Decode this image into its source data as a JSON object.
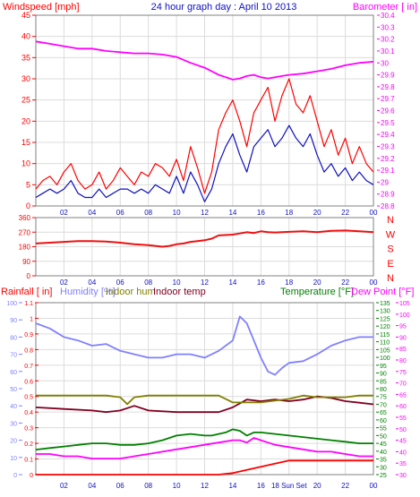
{
  "header": {
    "left_title": "Windspeed [mph]",
    "center_title": "24 hour graph day : April 10 2013",
    "right_title": "Barometer [ in]"
  },
  "colors": {
    "wind_gust": "#ff0000",
    "wind_avg": "#1010c0",
    "barometer": "#ff00ff",
    "direction": "#ee1111",
    "rainfall": "#ff0000",
    "humidity": "#8080ff",
    "indoor_hum": "#808000",
    "indoor_temp": "#800020",
    "temperature": "#008000",
    "dew_point": "#ff00ff",
    "annotation": "#ffff00",
    "grid": "#dcdcdc",
    "frame": "#808080"
  },
  "x_ticks": [
    "02",
    "04",
    "06",
    "08",
    "10",
    "12",
    "14",
    "16",
    "18",
    "20",
    "22",
    "00"
  ],
  "x_ticks_bottom": [
    "02",
    "04",
    "06",
    "08",
    "10",
    "12",
    "14",
    "16",
    "18 Sun Set",
    "20",
    "22",
    "00"
  ],
  "chart_data": [
    {
      "type": "line",
      "name": "windspeed-barometer",
      "x_range": [
        0,
        24
      ],
      "y_left": {
        "label": "Windspeed [mph]",
        "range": [
          0,
          45
        ],
        "ticks": [
          "0",
          "5",
          "10",
          "15",
          "20",
          "25",
          "30",
          "35",
          "40",
          "45"
        ]
      },
      "y_right": {
        "label": "Barometer [ in]",
        "range": [
          28.8,
          30.4
        ],
        "ticks": [
          "28.8",
          "28.9",
          "29",
          "29.1",
          "29.2",
          "29.3",
          "29.4",
          "29.5",
          "29.6",
          "29.7",
          "29.8",
          "29.9",
          "30",
          "30.1",
          "30.2",
          "30.3",
          "30.4"
        ]
      },
      "series": [
        {
          "key": "gust",
          "axis": "left",
          "x": [
            0,
            0.5,
            1,
            1.5,
            2,
            2.5,
            3,
            3.5,
            4,
            4.5,
            5,
            5.5,
            6,
            6.5,
            7,
            7.5,
            8,
            8.5,
            9,
            9.5,
            10,
            10.5,
            11,
            11.5,
            12,
            12.5,
            13,
            13.5,
            14,
            14.5,
            15,
            15.5,
            16,
            16.5,
            17,
            17.5,
            18,
            18.5,
            19,
            19.5,
            20,
            20.5,
            21,
            21.5,
            22,
            22.5,
            23,
            23.5,
            24
          ],
          "values": [
            4,
            6,
            7,
            5,
            8,
            10,
            6,
            4,
            5,
            8,
            4,
            6,
            9,
            7,
            5,
            8,
            7,
            10,
            9,
            7,
            11,
            6,
            14,
            9,
            3,
            8,
            18,
            22,
            25,
            20,
            14,
            22,
            25,
            28,
            20,
            26,
            30,
            24,
            22,
            26,
            20,
            14,
            18,
            12,
            16,
            10,
            14,
            10,
            8
          ]
        },
        {
          "key": "average",
          "axis": "left",
          "x": [
            0,
            0.5,
            1,
            1.5,
            2,
            2.5,
            3,
            3.5,
            4,
            4.5,
            5,
            5.5,
            6,
            6.5,
            7,
            7.5,
            8,
            8.5,
            9,
            9.5,
            10,
            10.5,
            11,
            11.5,
            12,
            12.5,
            13,
            13.5,
            14,
            14.5,
            15,
            15.5,
            16,
            16.5,
            17,
            17.5,
            18,
            18.5,
            19,
            19.5,
            20,
            20.5,
            21,
            21.5,
            22,
            22.5,
            23,
            23.5,
            24
          ],
          "values": [
            2,
            3,
            4,
            3,
            4,
            6,
            3,
            2,
            2,
            4,
            2,
            3,
            4,
            4,
            3,
            4,
            3,
            5,
            4,
            3,
            7,
            3,
            8,
            5,
            1,
            4,
            10,
            14,
            17,
            12,
            8,
            14,
            16,
            18,
            14,
            16,
            19,
            16,
            14,
            17,
            12,
            8,
            10,
            7,
            9,
            6,
            8,
            6,
            5
          ]
        },
        {
          "key": "barometer",
          "axis": "right",
          "x": [
            0,
            1,
            2,
            3,
            4,
            5,
            6,
            7,
            8,
            9,
            10,
            11,
            12,
            12.5,
            13,
            13.5,
            14,
            14.5,
            15,
            15.5,
            16,
            16.5,
            17,
            17.5,
            18,
            19,
            20,
            21,
            22,
            23,
            24
          ],
          "values": [
            30.18,
            30.16,
            30.14,
            30.12,
            30.12,
            30.1,
            30.09,
            30.08,
            30.08,
            30.07,
            30.05,
            30.0,
            29.96,
            29.93,
            29.9,
            29.88,
            29.86,
            29.87,
            29.89,
            29.9,
            29.88,
            29.87,
            29.88,
            29.89,
            29.9,
            29.91,
            29.93,
            29.95,
            29.98,
            30.0,
            30.01
          ]
        }
      ]
    },
    {
      "type": "line",
      "name": "wind-direction",
      "x_range": [
        0,
        24
      ],
      "y_left": {
        "range": [
          0,
          360
        ],
        "ticks": [
          "0",
          "90",
          "180",
          "270",
          "360"
        ]
      },
      "y_right_labels": [
        "N",
        "W",
        "S",
        "E",
        "N"
      ],
      "series": [
        {
          "key": "direction",
          "x": [
            0,
            1,
            2,
            3,
            4,
            5,
            6,
            7,
            8,
            9,
            9.5,
            10,
            10.5,
            11,
            11.5,
            12,
            12.5,
            13,
            14,
            14.5,
            15,
            15.5,
            16,
            16.5,
            17,
            18,
            19,
            20,
            21,
            22,
            23,
            24
          ],
          "values": [
            200,
            205,
            210,
            215,
            215,
            212,
            205,
            195,
            190,
            180,
            185,
            195,
            200,
            210,
            215,
            220,
            230,
            250,
            255,
            262,
            270,
            265,
            275,
            270,
            268,
            272,
            275,
            270,
            278,
            280,
            275,
            270
          ]
        }
      ]
    },
    {
      "type": "line",
      "name": "rain-humidity-temperature",
      "x_range": [
        0,
        24
      ],
      "y_rain": {
        "label": "Rainfall [ in]",
        "range": [
          0,
          1.1
        ],
        "ticks": [
          "0",
          "0.1",
          "0.2",
          "0.3",
          "0.4",
          "0.5",
          "0.6",
          "0.7",
          "0.8",
          "0.9",
          "1",
          "1.1"
        ]
      },
      "y_humidity": {
        "label": "Humidity [%]",
        "range": [
          0,
          100
        ],
        "ticks": [
          "0",
          "10",
          "20",
          "30",
          "40",
          "50",
          "60",
          "70",
          "80",
          "90",
          "100"
        ]
      },
      "y_temp": {
        "label": "Temperature [°F]",
        "range": [
          25,
          135
        ],
        "ticks": [
          "25",
          "30",
          "35",
          "40",
          "45",
          "50",
          "55",
          "60",
          "65",
          "70",
          "75",
          "80",
          "85",
          "90",
          "95",
          "100",
          "105",
          "110",
          "115",
          "120",
          "125",
          "130",
          "135"
        ]
      },
      "y_dew": {
        "label": "Dew Point [°F]",
        "range": [
          30,
          105
        ],
        "ticks": [
          "30",
          "35",
          "40",
          "45",
          "50",
          "55",
          "60",
          "65",
          "70",
          "75",
          "80",
          "85",
          "90",
          "95",
          "100",
          "105"
        ]
      },
      "legend_labels": [
        "Rainfall [ in]",
        "Humidity [%]",
        "Indoor hum",
        "Indoor temp",
        "Temperature [°F]",
        "Dew Point [°F]"
      ],
      "series": [
        {
          "key": "rainfall",
          "axis": "rain",
          "x": [
            0,
            13,
            14,
            14.5,
            15,
            16,
            17,
            17.5,
            18,
            24
          ],
          "values": [
            0,
            0,
            0.01,
            0.02,
            0.03,
            0.05,
            0.07,
            0.08,
            0.09,
            0.09
          ]
        },
        {
          "key": "humidity",
          "axis": "humidity",
          "x": [
            0,
            1,
            2,
            3,
            4,
            5,
            6,
            7,
            8,
            9,
            10,
            11,
            12,
            13,
            13.5,
            14,
            14.5,
            15,
            15.5,
            16,
            16.5,
            17,
            17.5,
            18,
            19,
            20,
            21,
            22,
            23,
            24
          ],
          "values": [
            88,
            85,
            80,
            78,
            75,
            76,
            72,
            70,
            68,
            68,
            70,
            70,
            68,
            72,
            75,
            78,
            92,
            88,
            78,
            68,
            60,
            58,
            62,
            65,
            66,
            70,
            75,
            78,
            80,
            80
          ]
        },
        {
          "key": "indoor_temp",
          "axis": "temp",
          "x": [
            0,
            2,
            4,
            5,
            6,
            7,
            8,
            10,
            12,
            13,
            14,
            15,
            16,
            17,
            18,
            19,
            20,
            21,
            22,
            23,
            24
          ],
          "values": [
            68,
            67,
            66,
            65,
            66,
            69,
            66,
            65,
            65,
            65,
            68,
            73,
            72,
            73,
            72,
            73,
            75,
            74,
            72,
            71,
            70
          ]
        },
        {
          "key": "indoor_hum",
          "axis": "humidity",
          "x": [
            0,
            2,
            4,
            5,
            6,
            6.5,
            7,
            8,
            10,
            12,
            13,
            14,
            15,
            16,
            17,
            18,
            19,
            20,
            21,
            22,
            23,
            24
          ],
          "values": [
            46,
            46,
            46,
            46,
            45,
            41,
            45,
            46,
            46,
            46,
            46,
            42,
            42,
            42,
            43,
            44,
            46,
            45,
            45,
            45,
            46,
            46
          ]
        },
        {
          "key": "temperature",
          "axis": "temp",
          "x": [
            0,
            1,
            2,
            3,
            4,
            5,
            6,
            7,
            8,
            9,
            10,
            11,
            12,
            12.5,
            13,
            13.5,
            14,
            14.5,
            15,
            15.5,
            16,
            17,
            18,
            19,
            20,
            21,
            22,
            23,
            24
          ],
          "values": [
            41,
            42,
            43,
            44,
            45,
            45,
            44,
            44,
            45,
            47,
            50,
            51,
            50,
            50,
            51,
            52,
            54,
            53,
            50,
            52,
            52,
            51,
            50,
            49,
            48,
            47,
            46,
            45,
            45
          ]
        },
        {
          "key": "dew_point",
          "axis": "dew",
          "x": [
            0,
            1,
            2,
            3,
            4,
            5,
            6,
            7,
            8,
            9,
            10,
            11,
            12,
            13,
            14,
            14.5,
            15,
            15.5,
            16,
            16.5,
            17,
            18,
            19,
            20,
            21,
            22,
            23,
            24
          ],
          "values": [
            39,
            39,
            38,
            38,
            37,
            37,
            37,
            38,
            39,
            40,
            41,
            42,
            43,
            44,
            45,
            45,
            44,
            46,
            45,
            44,
            43,
            42,
            41,
            40,
            40,
            39,
            38,
            38
          ]
        }
      ]
    }
  ]
}
